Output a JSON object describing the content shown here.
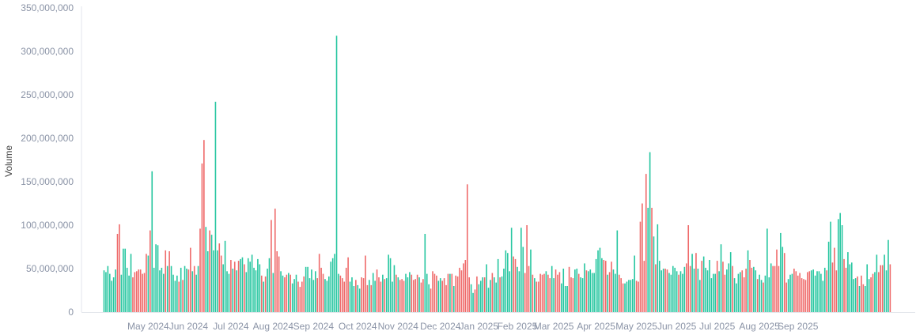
{
  "chart_data": {
    "type": "bar",
    "ylabel": "Volume",
    "xlabel": "",
    "ylim": [
      0,
      350000000
    ],
    "y_ticks": [
      0,
      50000000,
      100000000,
      150000000,
      200000000,
      250000000,
      300000000,
      350000000
    ],
    "y_tick_labels": [
      "0",
      "50,000,000",
      "100,000,000",
      "150,000,000",
      "200,000,000",
      "250,000,000",
      "300,000,000",
      "350,000,000"
    ],
    "x_tick_labels": [
      "May 2024",
      "Jun 2024",
      "Jul 2024",
      "Aug 2024",
      "Sep 2024",
      "Oct 2024",
      "Nov 2024",
      "Dec 2024",
      "Jan 2025",
      "Feb 2025",
      "Mar 2025",
      "Apr 2025",
      "May 2025",
      "Jun 2025",
      "Jul 2025",
      "Aug 2025",
      "Sep 2025"
    ],
    "x_ticks_bar_index": [
      23,
      44,
      66,
      88,
      109,
      132,
      153,
      175,
      195,
      215,
      234,
      256,
      277,
      298,
      319,
      341,
      361
    ],
    "up_color": "#26c6a0",
    "down_color": "#ef6a6a",
    "grid": false,
    "values": [
      48000000,
      46000000,
      53000000,
      44000000,
      36000000,
      40000000,
      49000000,
      90000000,
      101000000,
      43000000,
      73000000,
      73000000,
      51000000,
      42000000,
      67000000,
      40000000,
      46000000,
      47000000,
      49000000,
      49000000,
      44000000,
      45000000,
      67000000,
      65000000,
      94000000,
      162000000,
      51000000,
      78000000,
      77000000,
      48000000,
      51000000,
      44000000,
      71000000,
      53000000,
      70000000,
      53000000,
      43000000,
      36000000,
      42000000,
      35000000,
      51000000,
      37000000,
      53000000,
      50000000,
      49000000,
      74000000,
      47000000,
      53000000,
      43000000,
      53000000,
      96000000,
      171000000,
      198000000,
      98000000,
      70000000,
      94000000,
      89000000,
      71000000,
      242000000,
      71000000,
      79000000,
      65000000,
      55000000,
      82000000,
      47000000,
      44000000,
      60000000,
      50000000,
      58000000,
      48000000,
      59000000,
      61000000,
      63000000,
      55000000,
      46000000,
      62000000,
      58000000,
      66000000,
      51000000,
      48000000,
      61000000,
      55000000,
      42000000,
      35000000,
      41000000,
      50000000,
      62000000,
      106000000,
      45000000,
      119000000,
      70000000,
      64000000,
      47000000,
      42000000,
      40000000,
      43000000,
      45000000,
      43000000,
      33000000,
      38000000,
      43000000,
      35000000,
      29000000,
      35000000,
      41000000,
      52000000,
      52000000,
      39000000,
      49000000,
      37000000,
      47000000,
      39000000,
      67000000,
      51000000,
      44000000,
      38000000,
      36000000,
      41000000,
      58000000,
      62000000,
      67000000,
      318000000,
      44000000,
      42000000,
      39000000,
      35000000,
      51000000,
      63000000,
      35000000,
      40000000,
      30000000,
      37000000,
      31000000,
      27000000,
      40000000,
      39000000,
      65000000,
      31000000,
      37000000,
      31000000,
      45000000,
      36000000,
      49000000,
      40000000,
      35000000,
      43000000,
      38000000,
      39000000,
      66000000,
      62000000,
      35000000,
      54000000,
      43000000,
      40000000,
      37000000,
      38000000,
      36000000,
      44000000,
      40000000,
      46000000,
      43000000,
      37000000,
      38000000,
      43000000,
      40000000,
      34000000,
      38000000,
      90000000,
      44000000,
      32000000,
      27000000,
      47000000,
      44000000,
      42000000,
      36000000,
      39000000,
      36000000,
      39000000,
      31000000,
      44000000,
      44000000,
      44000000,
      30000000,
      42000000,
      41000000,
      51000000,
      48000000,
      56000000,
      60000000,
      147000000,
      40000000,
      32000000,
      22000000,
      26000000,
      41000000,
      32000000,
      36000000,
      40000000,
      40000000,
      55000000,
      28000000,
      37000000,
      45000000,
      40000000,
      34000000,
      61000000,
      40000000,
      41000000,
      50000000,
      71000000,
      68000000,
      47000000,
      97000000,
      64000000,
      61000000,
      52000000,
      47000000,
      97000000,
      75000000,
      45000000,
      100000000,
      53000000,
      72000000,
      43000000,
      39000000,
      35000000,
      35000000,
      44000000,
      43000000,
      44000000,
      47000000,
      43000000,
      39000000,
      53000000,
      39000000,
      49000000,
      43000000,
      46000000,
      33000000,
      50000000,
      30000000,
      30000000,
      52000000,
      40000000,
      39000000,
      49000000,
      50000000,
      44000000,
      40000000,
      39000000,
      56000000,
      48000000,
      47000000,
      49000000,
      45000000,
      45000000,
      61000000,
      71000000,
      74000000,
      62000000,
      60000000,
      59000000,
      43000000,
      46000000,
      58000000,
      49000000,
      44000000,
      94000000,
      43000000,
      39000000,
      33000000,
      33000000,
      35000000,
      37000000,
      37000000,
      38000000,
      65000000,
      36000000,
      35000000,
      104000000,
      125000000,
      59000000,
      159000000,
      120000000,
      184000000,
      120000000,
      87000000,
      55000000,
      101000000,
      59000000,
      48000000,
      50000000,
      50000000,
      49000000,
      45000000,
      43000000,
      53000000,
      51000000,
      47000000,
      43000000,
      47000000,
      44000000,
      52000000,
      56000000,
      100000000,
      53000000,
      67000000,
      50000000,
      68000000,
      50000000,
      37000000,
      59000000,
      64000000,
      51000000,
      48000000,
      60000000,
      39000000,
      44000000,
      44000000,
      59000000,
      47000000,
      78000000,
      58000000,
      43000000,
      49000000,
      56000000,
      69000000,
      53000000,
      39000000,
      33000000,
      44000000,
      46000000,
      48000000,
      40000000,
      50000000,
      71000000,
      60000000,
      51000000,
      52000000,
      48000000,
      38000000,
      43000000,
      37000000,
      34000000,
      42000000,
      96000000,
      40000000,
      56000000,
      53000000,
      53000000,
      72000000,
      53000000,
      91000000,
      75000000,
      68000000,
      34000000,
      38000000,
      43000000,
      44000000,
      50000000,
      47000000,
      42000000,
      45000000,
      39000000,
      38000000,
      37000000,
      46000000,
      47000000,
      48000000,
      49000000,
      42000000,
      47000000,
      47000000,
      44000000,
      36000000,
      51000000,
      48000000,
      81000000,
      104000000,
      57000000,
      74000000,
      48000000,
      107000000,
      114000000,
      100000000,
      61000000,
      51000000,
      69000000,
      55000000,
      57000000,
      38000000,
      39000000,
      41000000,
      30000000,
      42000000,
      32000000,
      30000000,
      55000000,
      38000000,
      40000000,
      44000000,
      46000000,
      66000000,
      46000000,
      54000000,
      54000000,
      66000000,
      48000000,
      83000000,
      55000000
    ],
    "up": [
      1,
      1,
      1,
      1,
      1,
      1,
      1,
      0,
      0,
      1,
      1,
      1,
      1,
      1,
      1,
      0,
      0,
      0,
      0,
      0,
      0,
      0,
      0,
      1,
      0,
      1,
      1,
      1,
      1,
      1,
      1,
      1,
      0,
      1,
      0,
      1,
      1,
      1,
      1,
      0,
      1,
      0,
      1,
      1,
      0,
      0,
      1,
      0,
      1,
      1,
      0,
      0,
      0,
      1,
      1,
      0,
      1,
      1,
      1,
      1,
      0,
      0,
      1,
      1,
      1,
      1,
      0,
      1,
      0,
      1,
      0,
      1,
      1,
      0,
      1,
      1,
      1,
      1,
      1,
      1,
      1,
      1,
      0,
      1,
      0,
      1,
      1,
      0,
      1,
      0,
      0,
      0,
      1,
      1,
      0,
      0,
      1,
      0,
      1,
      1,
      1,
      0,
      0,
      0,
      0,
      1,
      1,
      1,
      1,
      1,
      1,
      0,
      0,
      0,
      0,
      1,
      1,
      1,
      1,
      1,
      1,
      1,
      1,
      0,
      0,
      0,
      0,
      0,
      1,
      1,
      1,
      0,
      1,
      1,
      0,
      0,
      0,
      0,
      1,
      0,
      1,
      1,
      0,
      0,
      0,
      1,
      0,
      1,
      1,
      1,
      1,
      1,
      0,
      1,
      0,
      0,
      0,
      1,
      1,
      1,
      0,
      0,
      0,
      0,
      1,
      0,
      0,
      1,
      1,
      1,
      0,
      0,
      0,
      0,
      1,
      1,
      0,
      0,
      0,
      0,
      1,
      0,
      1,
      0,
      0,
      0,
      0,
      0,
      0,
      0,
      0,
      1,
      1,
      0,
      0,
      1,
      1,
      1,
      0,
      1,
      1,
      1,
      0,
      1,
      1,
      1,
      0,
      1,
      1,
      1,
      1,
      1,
      1,
      0,
      0,
      1,
      1,
      1,
      1,
      0,
      0,
      0,
      1,
      0,
      1,
      0,
      0,
      0,
      0,
      0,
      1,
      0,
      0,
      1,
      1,
      0,
      0,
      0,
      1,
      1,
      1,
      1,
      0,
      0,
      0,
      1,
      1,
      0,
      1,
      1,
      1,
      0,
      1,
      1,
      1,
      1,
      1,
      1,
      1,
      1,
      0,
      0,
      1,
      0,
      0,
      1,
      1,
      1,
      0,
      0,
      0,
      1,
      1,
      1,
      1,
      1,
      1,
      0,
      0,
      0,
      0,
      0,
      0,
      1,
      1,
      0,
      1,
      0,
      1,
      1,
      1,
      1,
      0,
      0,
      1,
      1,
      1,
      1,
      1,
      0,
      1,
      1,
      1,
      0,
      0,
      0,
      1,
      1,
      0,
      1,
      1,
      0,
      1,
      1,
      1,
      1,
      1,
      1,
      1,
      0,
      1,
      1,
      0,
      0,
      1,
      1,
      1,
      0,
      1,
      1,
      1,
      1,
      0,
      0,
      0,
      1,
      0,
      0,
      1,
      1,
      0,
      1,
      1,
      0,
      1,
      1,
      1,
      1,
      0,
      0,
      0,
      0,
      1,
      1,
      0,
      0,
      1,
      1,
      1,
      0,
      0,
      0,
      0,
      0,
      0,
      0,
      0,
      0,
      1,
      1,
      1,
      1,
      1,
      1,
      1,
      1,
      0,
      1,
      1,
      0,
      0,
      0,
      1,
      1,
      1,
      0,
      0,
      1,
      1,
      1,
      1,
      1,
      0,
      1,
      0,
      0,
      1,
      1,
      1,
      0,
      0,
      1,
      1,
      0,
      0,
      0,
      1,
      1,
      1,
      0,
      1,
      0
    ]
  }
}
